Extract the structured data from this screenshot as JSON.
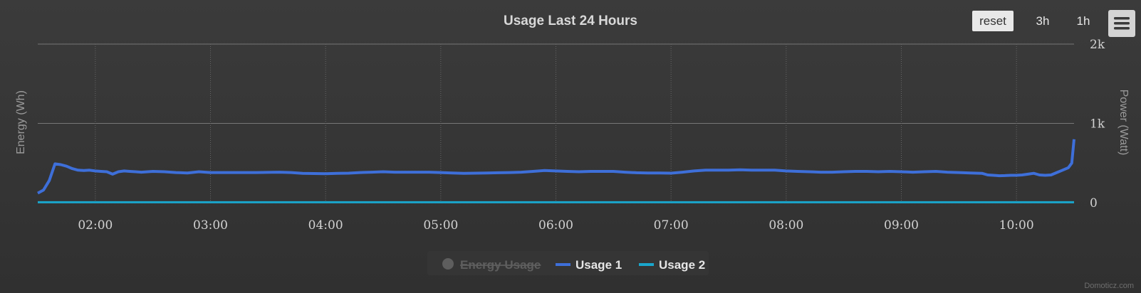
{
  "chart_data": {
    "type": "line",
    "title": "Usage Last 24 Hours",
    "y_left_label": "Energy (Wh)",
    "y_right_label": "Power (Watt)",
    "x_ticks": [
      "02:00",
      "03:00",
      "04:00",
      "05:00",
      "06:00",
      "07:00",
      "08:00",
      "09:00",
      "10:00"
    ],
    "x_range_hours": [
      1.5,
      10.5
    ],
    "y_right_ticks": [
      "0",
      "1k",
      "2k"
    ],
    "y_right_range": [
      0,
      2000
    ],
    "grid": true,
    "legend_position": "bottom-center",
    "series": [
      {
        "name": "Energy Usage",
        "visible": false,
        "color": "#666666",
        "values": []
      },
      {
        "name": "Usage 1",
        "visible": true,
        "color": "#3e6fd9",
        "x": [
          1.5,
          1.55,
          1.6,
          1.65,
          1.7,
          1.75,
          1.8,
          1.85,
          1.9,
          1.95,
          2.0,
          2.05,
          2.1,
          2.15,
          2.2,
          2.25,
          2.3,
          2.35,
          2.4,
          2.5,
          2.6,
          2.7,
          2.8,
          2.9,
          3.0,
          3.2,
          3.4,
          3.6,
          3.7,
          3.8,
          3.9,
          4.0,
          4.1,
          4.2,
          4.3,
          4.4,
          4.5,
          4.6,
          4.7,
          4.8,
          4.9,
          5.0,
          5.1,
          5.2,
          5.3,
          5.4,
          5.5,
          5.6,
          5.7,
          5.8,
          5.9,
          6.0,
          6.1,
          6.2,
          6.3,
          6.4,
          6.5,
          6.6,
          6.7,
          6.8,
          6.9,
          7.0,
          7.1,
          7.2,
          7.3,
          7.4,
          7.5,
          7.6,
          7.7,
          7.8,
          7.9,
          8.0,
          8.1,
          8.2,
          8.3,
          8.4,
          8.5,
          8.6,
          8.7,
          8.8,
          8.9,
          9.0,
          9.1,
          9.2,
          9.3,
          9.4,
          9.5,
          9.6,
          9.7,
          9.75,
          9.8,
          9.85,
          9.9,
          9.95,
          10.0,
          10.05,
          10.1,
          10.15,
          10.2,
          10.25,
          10.3,
          10.35,
          10.4,
          10.45,
          10.48,
          10.5
        ],
        "values": [
          120,
          160,
          280,
          490,
          480,
          460,
          430,
          410,
          405,
          410,
          400,
          395,
          390,
          360,
          390,
          400,
          395,
          390,
          385,
          395,
          390,
          380,
          375,
          390,
          380,
          380,
          380,
          385,
          380,
          370,
          368,
          365,
          370,
          372,
          380,
          385,
          390,
          385,
          385,
          385,
          385,
          380,
          375,
          370,
          372,
          375,
          378,
          380,
          385,
          395,
          405,
          400,
          395,
          390,
          395,
          395,
          395,
          385,
          378,
          375,
          375,
          372,
          385,
          400,
          410,
          410,
          410,
          415,
          410,
          410,
          410,
          400,
          395,
          390,
          385,
          385,
          390,
          395,
          395,
          390,
          395,
          390,
          385,
          390,
          395,
          385,
          380,
          375,
          370,
          350,
          345,
          340,
          342,
          345,
          345,
          350,
          360,
          370,
          350,
          345,
          350,
          380,
          410,
          440,
          500,
          800
        ]
      },
      {
        "name": "Usage 2",
        "visible": true,
        "color": "#1aa6cc",
        "x": [
          1.5,
          10.5
        ],
        "values": [
          5,
          5
        ]
      }
    ]
  },
  "toolbar": {
    "reset_label": "reset",
    "zoom_3h_label": "3h",
    "zoom_1h_label": "1h",
    "menu_icon": "hamburger-menu-icon"
  },
  "credit": "Domoticz.com"
}
